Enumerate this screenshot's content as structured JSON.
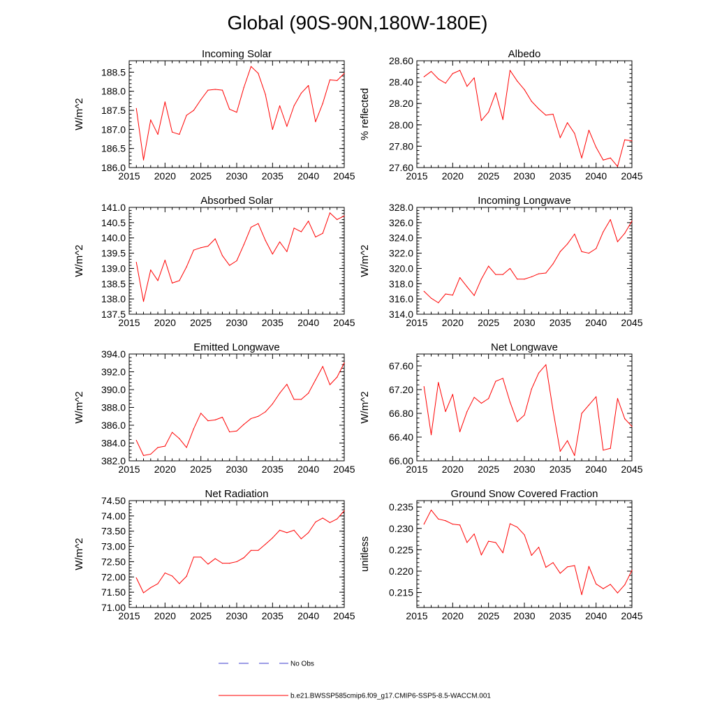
{
  "figure_title": "Global (90S-90N,180W-180E)",
  "colors": {
    "series": "#ff0000",
    "no_obs": "#3b3bcc"
  },
  "legend": [
    {
      "name": "No Obs",
      "style": "dashed",
      "color": "#3b3bcc"
    },
    {
      "name": "b.e21.BWSSP585cmip6.f09_g17.CMIP6-SSP5-8.5-WACCM.001",
      "style": "solid",
      "color": "#ff0000"
    }
  ],
  "chart_data": [
    {
      "type": "line",
      "title": "Incoming Solar",
      "ylabel": "W/m^2",
      "xlabel": "",
      "xlim": [
        2015,
        2045
      ],
      "ylim": [
        186.0,
        188.8
      ],
      "xticks": [
        2015,
        2020,
        2025,
        2030,
        2035,
        2040,
        2045
      ],
      "yticks": [
        186.0,
        186.5,
        187.0,
        187.5,
        188.0,
        188.5
      ],
      "ytick_labels": [
        "186.0",
        "186.5",
        "187.0",
        "187.5",
        "188.0",
        "188.5"
      ],
      "x": [
        2016,
        2017,
        2018,
        2019,
        2020,
        2021,
        2022,
        2023,
        2024,
        2025,
        2026,
        2027,
        2028,
        2029,
        2030,
        2031,
        2032,
        2033,
        2034,
        2035,
        2036,
        2037,
        2038,
        2039,
        2040,
        2041,
        2042,
        2043,
        2044,
        2045
      ],
      "values": [
        187.55,
        186.2,
        187.25,
        186.87,
        187.72,
        186.93,
        186.87,
        187.37,
        187.5,
        187.78,
        188.03,
        188.05,
        188.03,
        187.53,
        187.45,
        188.1,
        188.65,
        188.47,
        187.92,
        187.0,
        187.62,
        187.08,
        187.62,
        187.95,
        188.15,
        187.2,
        187.68,
        188.3,
        188.28,
        188.47
      ]
    },
    {
      "type": "line",
      "title": "Albedo",
      "ylabel": "% reflected",
      "xlabel": "",
      "xlim": [
        2015,
        2045
      ],
      "ylim": [
        27.6,
        28.6
      ],
      "xticks": [
        2015,
        2020,
        2025,
        2030,
        2035,
        2040,
        2045
      ],
      "yticks": [
        27.6,
        27.8,
        28.0,
        28.2,
        28.4,
        28.6
      ],
      "ytick_labels": [
        "27.60",
        "27.80",
        "28.00",
        "28.20",
        "28.40",
        "28.60"
      ],
      "x": [
        2016,
        2017,
        2018,
        2019,
        2020,
        2021,
        2022,
        2023,
        2024,
        2025,
        2026,
        2027,
        2028,
        2029,
        2030,
        2031,
        2032,
        2033,
        2034,
        2035,
        2036,
        2037,
        2038,
        2039,
        2040,
        2041,
        2042,
        2043,
        2044,
        2045
      ],
      "values": [
        28.45,
        28.5,
        28.43,
        28.39,
        28.48,
        28.51,
        28.36,
        28.44,
        28.04,
        28.12,
        28.3,
        28.05,
        28.51,
        28.41,
        28.33,
        28.22,
        28.15,
        28.09,
        28.1,
        27.88,
        28.02,
        27.92,
        27.69,
        27.95,
        27.79,
        27.67,
        27.69,
        27.61,
        27.86,
        27.85
      ]
    },
    {
      "type": "line",
      "title": "Absorbed Solar",
      "ylabel": "W/m^2",
      "xlabel": "",
      "xlim": [
        2015,
        2045
      ],
      "ylim": [
        137.5,
        141.0
      ],
      "xticks": [
        2015,
        2020,
        2025,
        2030,
        2035,
        2040,
        2045
      ],
      "yticks": [
        137.5,
        138.0,
        138.5,
        139.0,
        139.5,
        140.0,
        140.5,
        141.0
      ],
      "ytick_labels": [
        "137.5",
        "138.0",
        "138.5",
        "139.0",
        "139.5",
        "140.0",
        "140.5",
        "141.0"
      ],
      "x": [
        2016,
        2017,
        2018,
        2019,
        2020,
        2021,
        2022,
        2023,
        2024,
        2025,
        2026,
        2027,
        2028,
        2029,
        2030,
        2031,
        2032,
        2033,
        2034,
        2035,
        2036,
        2037,
        2038,
        2039,
        2040,
        2041,
        2042,
        2043,
        2044,
        2045
      ],
      "values": [
        139.2,
        137.92,
        138.95,
        138.6,
        139.27,
        138.52,
        138.6,
        139.05,
        139.6,
        139.68,
        139.73,
        139.97,
        139.42,
        139.1,
        139.25,
        139.78,
        140.35,
        140.47,
        139.92,
        139.47,
        139.87,
        139.55,
        140.32,
        140.2,
        140.55,
        140.03,
        140.15,
        140.82,
        140.6,
        140.72
      ]
    },
    {
      "type": "line",
      "title": "Incoming Longwave",
      "ylabel": "W/m^2",
      "xlabel": "",
      "xlim": [
        2015,
        2045
      ],
      "ylim": [
        314.0,
        328.0
      ],
      "xticks": [
        2015,
        2020,
        2025,
        2030,
        2035,
        2040,
        2045
      ],
      "yticks": [
        314.0,
        316.0,
        318.0,
        320.0,
        322.0,
        324.0,
        326.0,
        328.0
      ],
      "ytick_labels": [
        "314.0",
        "316.0",
        "318.0",
        "320.0",
        "322.0",
        "324.0",
        "326.0",
        "328.0"
      ],
      "x": [
        2016,
        2017,
        2018,
        2019,
        2020,
        2021,
        2022,
        2023,
        2024,
        2025,
        2026,
        2027,
        2028,
        2029,
        2030,
        2031,
        2032,
        2033,
        2034,
        2035,
        2036,
        2037,
        2038,
        2039,
        2040,
        2041,
        2042,
        2043,
        2044,
        2045
      ],
      "values": [
        317.0,
        316.1,
        315.5,
        316.65,
        316.5,
        318.8,
        317.6,
        316.45,
        318.6,
        320.3,
        319.2,
        319.2,
        320.0,
        318.6,
        318.6,
        318.9,
        319.3,
        319.4,
        320.6,
        322.2,
        323.2,
        324.5,
        322.2,
        322.0,
        322.6,
        324.8,
        326.4,
        323.5,
        324.6,
        326.2
      ]
    },
    {
      "type": "line",
      "title": "Emitted Longwave",
      "ylabel": "W/m^2",
      "xlabel": "",
      "xlim": [
        2015,
        2045
      ],
      "ylim": [
        382.0,
        394.0
      ],
      "xticks": [
        2015,
        2020,
        2025,
        2030,
        2035,
        2040,
        2045
      ],
      "yticks": [
        382.0,
        384.0,
        386.0,
        388.0,
        390.0,
        392.0,
        394.0
      ],
      "ytick_labels": [
        "382.0",
        "384.0",
        "386.0",
        "388.0",
        "390.0",
        "392.0",
        "394.0"
      ],
      "x": [
        2016,
        2017,
        2018,
        2019,
        2020,
        2021,
        2022,
        2023,
        2024,
        2025,
        2026,
        2027,
        2028,
        2029,
        2030,
        2031,
        2032,
        2033,
        2034,
        2035,
        2036,
        2037,
        2038,
        2039,
        2040,
        2041,
        2042,
        2043,
        2044,
        2045
      ],
      "values": [
        384.3,
        382.6,
        382.75,
        383.5,
        383.65,
        385.2,
        384.5,
        383.5,
        385.6,
        387.35,
        386.5,
        386.6,
        386.9,
        385.25,
        385.35,
        386.1,
        386.75,
        387.0,
        387.5,
        388.4,
        389.6,
        390.6,
        388.9,
        388.9,
        389.6,
        391.1,
        392.6,
        390.55,
        391.4,
        393.0
      ]
    },
    {
      "type": "line",
      "title": "Net Longwave",
      "ylabel": "W/m^2",
      "xlabel": "",
      "xlim": [
        2015,
        2045
      ],
      "ylim": [
        66.0,
        67.8
      ],
      "xticks": [
        2015,
        2020,
        2025,
        2030,
        2035,
        2040,
        2045
      ],
      "yticks": [
        66.0,
        66.4,
        66.8,
        67.2,
        67.6
      ],
      "ytick_labels": [
        "66.00",
        "66.40",
        "66.80",
        "67.20",
        "67.60"
      ],
      "x": [
        2016,
        2017,
        2018,
        2019,
        2020,
        2021,
        2022,
        2023,
        2024,
        2025,
        2026,
        2027,
        2028,
        2029,
        2030,
        2031,
        2032,
        2033,
        2034,
        2035,
        2036,
        2037,
        2038,
        2039,
        2040,
        2041,
        2042,
        2043,
        2044,
        2045
      ],
      "values": [
        67.25,
        66.44,
        67.32,
        66.83,
        67.12,
        66.49,
        66.83,
        67.07,
        66.97,
        67.05,
        67.34,
        67.39,
        66.99,
        66.66,
        66.77,
        67.21,
        67.48,
        67.62,
        66.85,
        66.16,
        66.34,
        66.09,
        66.8,
        66.94,
        67.08,
        66.18,
        66.21,
        67.05,
        66.71,
        66.58
      ]
    },
    {
      "type": "line",
      "title": "Net Radiation",
      "ylabel": "W/m^2",
      "xlabel": "",
      "xlim": [
        2015,
        2045
      ],
      "ylim": [
        71.0,
        74.5
      ],
      "xticks": [
        2015,
        2020,
        2025,
        2030,
        2035,
        2040,
        2045
      ],
      "yticks": [
        71.0,
        71.5,
        72.0,
        72.5,
        73.0,
        73.5,
        74.0,
        74.5
      ],
      "ytick_labels": [
        "71.00",
        "71.50",
        "72.00",
        "72.50",
        "73.00",
        "73.50",
        "74.00",
        "74.50"
      ],
      "x": [
        2016,
        2017,
        2018,
        2019,
        2020,
        2021,
        2022,
        2023,
        2024,
        2025,
        2026,
        2027,
        2028,
        2029,
        2030,
        2031,
        2032,
        2033,
        2034,
        2035,
        2036,
        2037,
        2038,
        2039,
        2040,
        2041,
        2042,
        2043,
        2044,
        2045
      ],
      "values": [
        71.97,
        71.48,
        71.65,
        71.78,
        72.13,
        72.03,
        71.78,
        72.02,
        72.65,
        72.65,
        72.42,
        72.6,
        72.45,
        72.45,
        72.5,
        72.63,
        72.87,
        72.87,
        73.07,
        73.28,
        73.53,
        73.45,
        73.53,
        73.25,
        73.45,
        73.8,
        73.93,
        73.78,
        73.9,
        74.17
      ]
    },
    {
      "type": "line",
      "title": "Ground Snow Covered Fraction",
      "ylabel": "unitless",
      "xlabel": "",
      "xlim": [
        2015,
        2045
      ],
      "ylim": [
        0.2115,
        0.2365
      ],
      "xticks": [
        2015,
        2020,
        2025,
        2030,
        2035,
        2040,
        2045
      ],
      "yticks": [
        0.215,
        0.22,
        0.225,
        0.23,
        0.235
      ],
      "ytick_labels": [
        "0.215",
        "0.220",
        "0.225",
        "0.230",
        "0.235"
      ],
      "x": [
        2016,
        2017,
        2018,
        2019,
        2020,
        2021,
        2022,
        2023,
        2024,
        2025,
        2026,
        2027,
        2028,
        2029,
        2030,
        2031,
        2032,
        2033,
        2034,
        2035,
        2036,
        2037,
        2038,
        2039,
        2040,
        2041,
        2042,
        2043,
        2044,
        2045
      ],
      "values": [
        0.231,
        0.2343,
        0.2322,
        0.2318,
        0.231,
        0.2308,
        0.2267,
        0.2287,
        0.2238,
        0.227,
        0.2267,
        0.2243,
        0.2311,
        0.2303,
        0.2285,
        0.2237,
        0.2256,
        0.2209,
        0.222,
        0.2195,
        0.221,
        0.2213,
        0.2145,
        0.2211,
        0.217,
        0.2159,
        0.2169,
        0.2149,
        0.2168,
        0.2202
      ]
    }
  ]
}
